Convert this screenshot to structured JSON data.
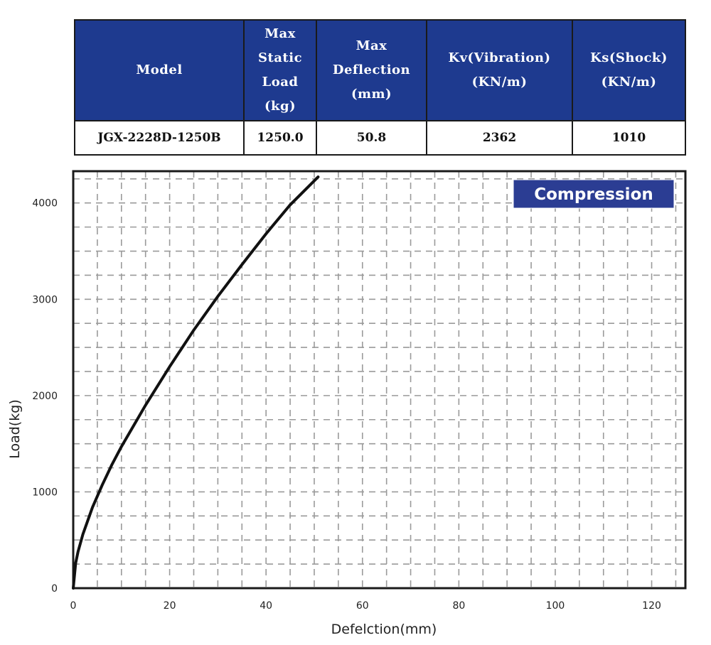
{
  "table": {
    "headers": [
      [
        "Model"
      ],
      [
        "Max",
        "Static",
        "Load",
        "(kg)"
      ],
      [
        "Max",
        "Deflection",
        "(mm)"
      ],
      [
        "Kv(Vibration)",
        "(KN/m)"
      ],
      [
        "Ks(Shock)",
        "(KN/m)"
      ]
    ],
    "row": [
      "JGX-2228D-1250B",
      "1250.0",
      "50.8",
      "2362",
      "1010"
    ]
  },
  "colors": {
    "header_bg": "#1e3a8f",
    "legend_bg": "#2b3d93",
    "grid": "#9a9a9a",
    "curve": "#111111"
  },
  "chart_data": {
    "type": "line",
    "title": "",
    "xlabel": "Defelction(mm)",
    "ylabel": "Load(kg)",
    "xlim": [
      0,
      127
    ],
    "ylim": [
      0,
      4330
    ],
    "xticks": [
      0,
      20,
      40,
      60,
      80,
      100,
      120
    ],
    "yticks": [
      0,
      1000,
      2000,
      3000,
      4000
    ],
    "grid": true,
    "legend": {
      "label": "Compression",
      "position": "top-right"
    },
    "series": [
      {
        "x": [
          0,
          0.5,
          1,
          2,
          4,
          6,
          8,
          10,
          15,
          20,
          25,
          30,
          35,
          40,
          45,
          50.8
        ],
        "y": [
          0,
          260,
          380,
          560,
          840,
          1070,
          1280,
          1470,
          1900,
          2300,
          2680,
          3030,
          3360,
          3680,
          3980,
          4270
        ]
      }
    ]
  }
}
